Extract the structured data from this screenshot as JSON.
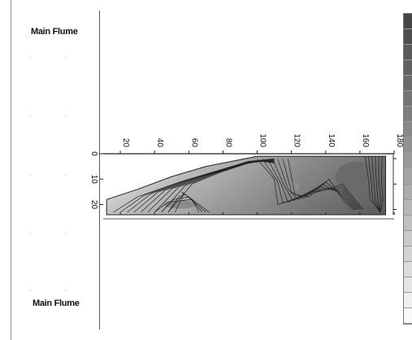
{
  "panel": {
    "label_top": "Main Flume",
    "label_bottom": "Main Flume"
  },
  "chart_data": {
    "type": "heatmap",
    "title": "",
    "xlabel": "",
    "ylabel": "",
    "xlim": [
      10,
      180
    ],
    "ylim": [
      0,
      24
    ],
    "x_ticks": [
      "20",
      "40",
      "60",
      "80",
      "100",
      "120",
      "140",
      "160",
      "180"
    ],
    "y_ticks": [
      "0",
      "10",
      "20"
    ],
    "colors": {
      "contour_line": "#222222",
      "fill_light": "#e6e6e6",
      "fill_mid": "#a8a8a8",
      "fill_dark": "#707070"
    },
    "legend_levels": 20
  }
}
